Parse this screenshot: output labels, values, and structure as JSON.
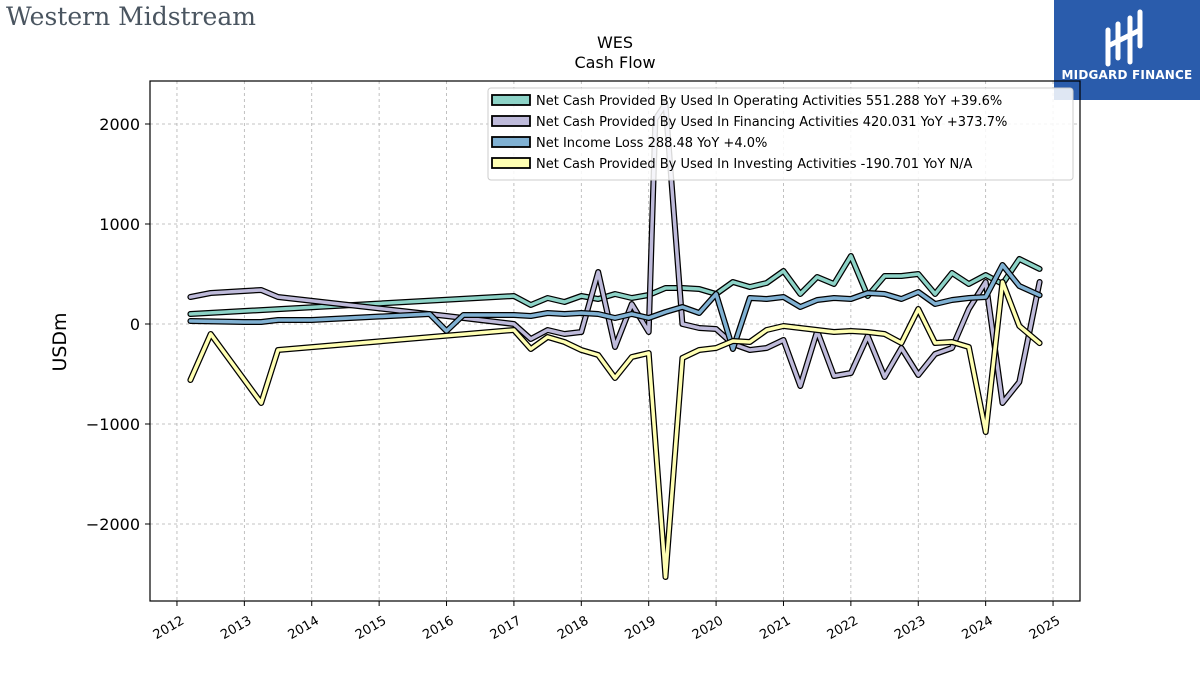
{
  "header": {
    "company": "Western Midstream",
    "badge_label": "MIDGARD FINANCE",
    "logo_icon": "midgard-logo-icon",
    "badge_color": "#2a5cac"
  },
  "chart_data": {
    "type": "line",
    "title": "WES",
    "subtitle": "Cash Flow",
    "ylabel": "USDm",
    "xlabel": "",
    "xlim": [
      2011.6,
      2025.4
    ],
    "ylim": [
      -2770,
      2430
    ],
    "grid": true,
    "legend_position": "top-right",
    "x_ticks": [
      "2012",
      "2013",
      "2014",
      "2015",
      "2016",
      "2017",
      "2018",
      "2019",
      "2020",
      "2021",
      "2022",
      "2023",
      "2024",
      "2025"
    ],
    "y_ticks": [
      {
        "value": 2000,
        "label": "2000"
      },
      {
        "value": 1000,
        "label": "1000"
      },
      {
        "value": 0,
        "label": "0"
      },
      {
        "value": -1000,
        "label": "−1000"
      },
      {
        "value": -2000,
        "label": "−2000"
      }
    ],
    "series": [
      {
        "name": "Net Cash Provided By Used In Operating Activities",
        "legend_label": "Net Cash Provided By Used In Operating Activities  551.288 YoY +39.6%",
        "color": "#8dd3c7",
        "points": [
          [
            2012.2,
            100
          ],
          [
            2017.0,
            280
          ],
          [
            2017.25,
            190
          ],
          [
            2017.5,
            260
          ],
          [
            2017.75,
            220
          ],
          [
            2018.0,
            280
          ],
          [
            2018.25,
            250
          ],
          [
            2018.5,
            300
          ],
          [
            2018.75,
            260
          ],
          [
            2019.0,
            290
          ],
          [
            2019.25,
            360
          ],
          [
            2019.5,
            360
          ],
          [
            2019.75,
            350
          ],
          [
            2020.0,
            300
          ],
          [
            2020.25,
            420
          ],
          [
            2020.5,
            370
          ],
          [
            2020.75,
            410
          ],
          [
            2021.0,
            530
          ],
          [
            2021.25,
            300
          ],
          [
            2021.5,
            470
          ],
          [
            2021.75,
            400
          ],
          [
            2022.0,
            680
          ],
          [
            2022.25,
            280
          ],
          [
            2022.5,
            480
          ],
          [
            2022.75,
            480
          ],
          [
            2023.0,
            500
          ],
          [
            2023.25,
            300
          ],
          [
            2023.5,
            510
          ],
          [
            2023.75,
            400
          ],
          [
            2024.0,
            490
          ],
          [
            2024.25,
            400
          ],
          [
            2024.5,
            650
          ],
          [
            2024.8,
            551
          ]
        ]
      },
      {
        "name": "Net Cash Provided By Used In Financing Activities",
        "legend_label": "Net Cash Provided By Used In Financing Activities  420.031 YoY +373.7%",
        "color": "#bebada",
        "points": [
          [
            2012.2,
            270
          ],
          [
            2012.5,
            310
          ],
          [
            2013.0,
            330
          ],
          [
            2013.25,
            340
          ],
          [
            2013.5,
            270
          ],
          [
            2016.0,
            80
          ],
          [
            2017.0,
            0
          ],
          [
            2017.25,
            -150
          ],
          [
            2017.5,
            -60
          ],
          [
            2017.75,
            -100
          ],
          [
            2018.0,
            -80
          ],
          [
            2018.25,
            520
          ],
          [
            2018.5,
            -230
          ],
          [
            2018.75,
            200
          ],
          [
            2019.0,
            -80
          ],
          [
            2019.1,
            2050
          ],
          [
            2019.25,
            2200
          ],
          [
            2019.5,
            0
          ],
          [
            2019.75,
            -40
          ],
          [
            2020.0,
            -50
          ],
          [
            2020.25,
            -200
          ],
          [
            2020.5,
            -260
          ],
          [
            2020.75,
            -240
          ],
          [
            2021.0,
            -160
          ],
          [
            2021.25,
            -620
          ],
          [
            2021.5,
            -70
          ],
          [
            2021.75,
            -520
          ],
          [
            2022.0,
            -490
          ],
          [
            2022.25,
            -120
          ],
          [
            2022.5,
            -530
          ],
          [
            2022.75,
            -240
          ],
          [
            2023.0,
            -510
          ],
          [
            2023.25,
            -300
          ],
          [
            2023.5,
            -240
          ],
          [
            2023.75,
            150
          ],
          [
            2024.0,
            420
          ],
          [
            2024.25,
            -790
          ],
          [
            2024.5,
            -580
          ],
          [
            2024.8,
            420
          ]
        ]
      },
      {
        "name": "Net Income Loss",
        "legend_label": "Net Income Loss  288.48 YoY +4.0%",
        "color": "#80b1d3",
        "points": [
          [
            2012.2,
            30
          ],
          [
            2013.0,
            20
          ],
          [
            2013.25,
            20
          ],
          [
            2013.5,
            40
          ],
          [
            2014.0,
            40
          ],
          [
            2015.75,
            100
          ],
          [
            2016.0,
            -70
          ],
          [
            2016.25,
            90
          ],
          [
            2017.0,
            90
          ],
          [
            2017.25,
            80
          ],
          [
            2017.5,
            110
          ],
          [
            2017.75,
            100
          ],
          [
            2018.0,
            110
          ],
          [
            2018.25,
            100
          ],
          [
            2018.5,
            60
          ],
          [
            2018.75,
            100
          ],
          [
            2019.0,
            60
          ],
          [
            2019.25,
            120
          ],
          [
            2019.5,
            170
          ],
          [
            2019.75,
            110
          ],
          [
            2020.0,
            300
          ],
          [
            2020.25,
            -250
          ],
          [
            2020.5,
            260
          ],
          [
            2020.75,
            250
          ],
          [
            2021.0,
            270
          ],
          [
            2021.25,
            170
          ],
          [
            2021.5,
            240
          ],
          [
            2021.75,
            260
          ],
          [
            2022.0,
            250
          ],
          [
            2022.25,
            310
          ],
          [
            2022.5,
            300
          ],
          [
            2022.75,
            250
          ],
          [
            2023.0,
            320
          ],
          [
            2023.25,
            200
          ],
          [
            2023.5,
            240
          ],
          [
            2023.75,
            260
          ],
          [
            2024.0,
            270
          ],
          [
            2024.25,
            590
          ],
          [
            2024.5,
            380
          ],
          [
            2024.8,
            288
          ]
        ]
      },
      {
        "name": "Net Cash Provided By Used In Investing Activities",
        "legend_label": "Net Cash Provided By Used In Investing Activities  -190.701 YoY N/A",
        "color": "#ffffb3",
        "points": [
          [
            2012.2,
            -560
          ],
          [
            2012.5,
            -100
          ],
          [
            2013.25,
            -790
          ],
          [
            2013.5,
            -260
          ],
          [
            2017.0,
            -60
          ],
          [
            2017.25,
            -250
          ],
          [
            2017.5,
            -130
          ],
          [
            2017.75,
            -180
          ],
          [
            2018.0,
            -260
          ],
          [
            2018.25,
            -310
          ],
          [
            2018.5,
            -540
          ],
          [
            2018.75,
            -330
          ],
          [
            2019.0,
            -290
          ],
          [
            2019.25,
            -2530
          ],
          [
            2019.5,
            -340
          ],
          [
            2019.75,
            -260
          ],
          [
            2020.0,
            -240
          ],
          [
            2020.25,
            -170
          ],
          [
            2020.5,
            -180
          ],
          [
            2020.75,
            -60
          ],
          [
            2021.0,
            -20
          ],
          [
            2021.25,
            -40
          ],
          [
            2021.5,
            -60
          ],
          [
            2021.75,
            -80
          ],
          [
            2022.0,
            -70
          ],
          [
            2022.25,
            -80
          ],
          [
            2022.5,
            -100
          ],
          [
            2022.75,
            -190
          ],
          [
            2023.0,
            150
          ],
          [
            2023.25,
            -190
          ],
          [
            2023.5,
            -180
          ],
          [
            2023.75,
            -230
          ],
          [
            2024.0,
            -1080
          ],
          [
            2024.25,
            420
          ],
          [
            2024.5,
            -20
          ],
          [
            2024.8,
            -191
          ]
        ]
      }
    ]
  }
}
